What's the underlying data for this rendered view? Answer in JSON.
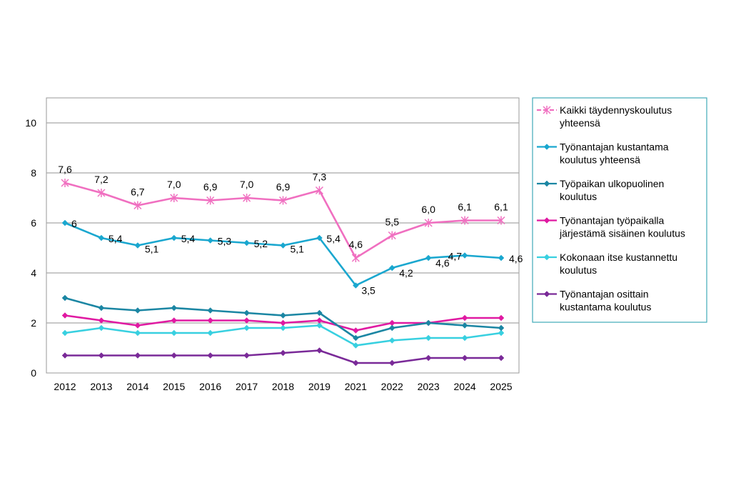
{
  "chart_data": {
    "type": "line",
    "categories": [
      "2012",
      "2013",
      "2014",
      "2015",
      "2016",
      "2017",
      "2018",
      "2019",
      "2021",
      "2022",
      "2023",
      "2024",
      "2025"
    ],
    "ylim": [
      0,
      11
    ],
    "yticks": [
      0,
      2,
      4,
      6,
      8,
      10
    ],
    "grid": true,
    "legend_position": "right",
    "series": [
      {
        "name": [
          "Kaikki täydennyskoulutus",
          "yhteensä"
        ],
        "color": "#f06fc0",
        "marker": "asterisk",
        "dashed_legend": true,
        "values": [
          7.6,
          7.2,
          6.7,
          7.0,
          6.9,
          7.0,
          6.9,
          7.3,
          4.6,
          5.5,
          6.0,
          6.1,
          6.1
        ],
        "labels": [
          "7,6",
          "7,2",
          "6,7",
          "7,0",
          "6,9",
          "7,0",
          "6,9",
          "7,3",
          "4,6",
          "5,5",
          "6,0",
          "6,1",
          "6,1"
        ]
      },
      {
        "name": [
          "Työnantajan kustantama",
          "koulutus yhteensä"
        ],
        "color": "#1aa7cf",
        "marker": "diamond",
        "values": [
          6.0,
          5.4,
          5.1,
          5.4,
          5.3,
          5.2,
          5.1,
          5.4,
          3.5,
          4.2,
          4.6,
          4.7,
          4.6
        ],
        "labels": [
          "6",
          "5,4",
          "5,1",
          "5,4",
          "5,3",
          "5,2",
          "5,1",
          "5,4",
          "3,5",
          "4,2",
          "4,6",
          "4,7",
          "4,6"
        ]
      },
      {
        "name": [
          "Työpaikan ulkopuolinen",
          "koulutus"
        ],
        "color": "#1b86a3",
        "marker": "diamond",
        "values": [
          3.0,
          2.6,
          2.5,
          2.6,
          2.5,
          2.4,
          2.3,
          2.4,
          1.4,
          1.8,
          2.0,
          1.9,
          1.8
        ]
      },
      {
        "name": [
          "Työnantajan työpaikalla",
          "järjestämä sisäinen koulutus"
        ],
        "color": "#e01aa2",
        "marker": "diamond",
        "values": [
          2.3,
          2.1,
          1.9,
          2.1,
          2.1,
          2.1,
          2.0,
          2.1,
          1.7,
          2.0,
          2.0,
          2.2,
          2.2
        ]
      },
      {
        "name": [
          "Kokonaan itse kustannettu",
          "koulutus"
        ],
        "color": "#38d0e0",
        "marker": "diamond",
        "values": [
          1.6,
          1.8,
          1.6,
          1.6,
          1.6,
          1.8,
          1.8,
          1.9,
          1.1,
          1.3,
          1.4,
          1.4,
          1.6
        ]
      },
      {
        "name": [
          "Työnantajan osittain",
          "kustantama koulutus"
        ],
        "color": "#7a2a98",
        "marker": "diamond",
        "values": [
          0.7,
          0.7,
          0.7,
          0.7,
          0.7,
          0.7,
          0.8,
          0.9,
          0.4,
          0.4,
          0.6,
          0.6,
          0.6
        ]
      }
    ]
  }
}
